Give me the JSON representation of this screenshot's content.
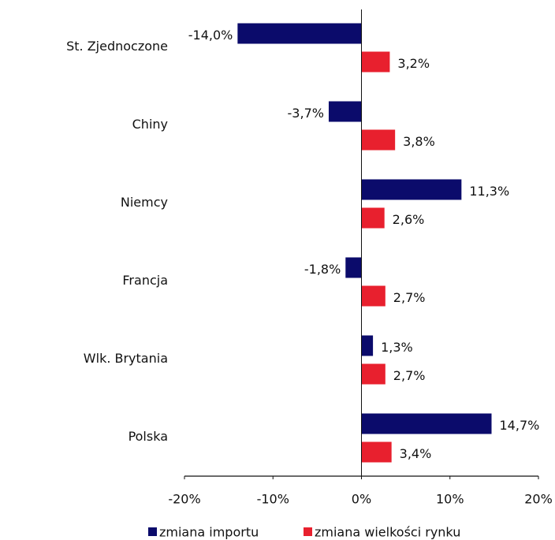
{
  "chart_data": {
    "type": "hbar",
    "categories": [
      "St. Zjednoczone",
      "Chiny",
      "Niemcy",
      "Francja",
      "Wlk. Brytania",
      "Polska"
    ],
    "series": [
      {
        "name": "zmiana importu",
        "color": "#0b0b6b",
        "values": [
          -14.0,
          -3.7,
          11.3,
          -1.8,
          1.3,
          14.7
        ],
        "value_labels": [
          "-14,0%",
          "-3,7%",
          "11,3%",
          "-1,8%",
          "1,3%",
          "14,7%"
        ]
      },
      {
        "name": "zmiana wielkości rynku",
        "color": "#e8202e",
        "values": [
          3.2,
          3.8,
          2.6,
          2.7,
          2.7,
          3.4
        ],
        "value_labels": [
          "3,2%",
          "3,8%",
          "2,6%",
          "2,7%",
          "2,7%",
          "3,4%"
        ]
      }
    ],
    "xlim": [
      -20,
      20
    ],
    "xticks": [
      {
        "value": -20,
        "label": "-20%"
      },
      {
        "value": -10,
        "label": "-10%"
      },
      {
        "value": 0,
        "label": "0%"
      },
      {
        "value": 10,
        "label": "10%"
      },
      {
        "value": 20,
        "label": "20%"
      }
    ],
    "legend": "bottom"
  }
}
